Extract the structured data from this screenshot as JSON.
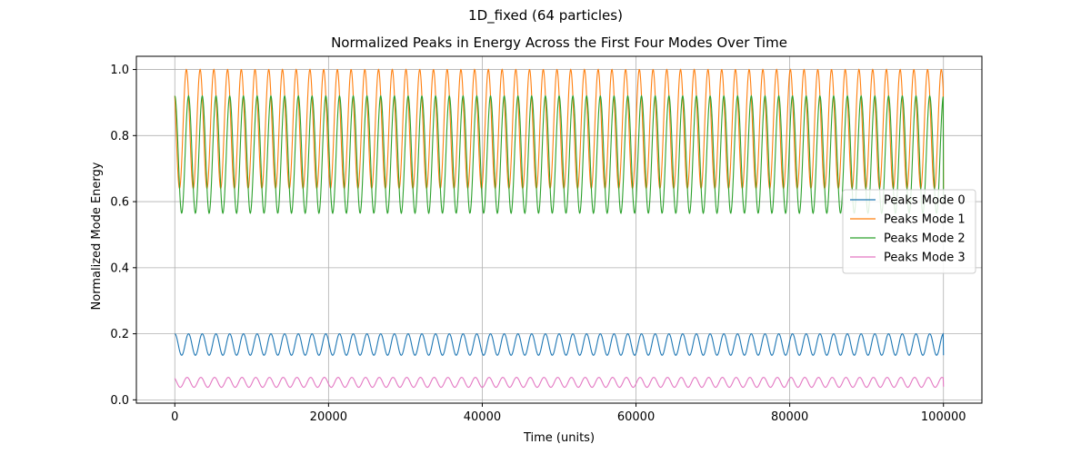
{
  "figure": {
    "suptitle": "1D_fixed (64 particles)"
  },
  "chart_data": {
    "type": "line",
    "title": "Normalized Peaks in Energy Across the First Four Modes Over Time",
    "xlabel": "Time (units)",
    "ylabel": "Normalized Mode Energy",
    "xlim": [
      -5000,
      105000
    ],
    "ylim": [
      -0.01,
      1.04
    ],
    "xticks": [
      0,
      20000,
      40000,
      60000,
      80000,
      100000
    ],
    "xtick_labels": [
      "0",
      "20000",
      "40000",
      "60000",
      "80000",
      "100000"
    ],
    "yticks": [
      0.0,
      0.2,
      0.4,
      0.6,
      0.8,
      1.0
    ],
    "ytick_labels": [
      "0.0",
      "0.2",
      "0.4",
      "0.6",
      "0.8",
      "1.0"
    ],
    "grid": true,
    "legend_position": "center-right",
    "x_range": [
      0,
      100000
    ],
    "series": [
      {
        "name": "Peaks Mode 0",
        "color": "#1f77b4",
        "oscillation": {
          "min": 0.135,
          "max": 0.2,
          "cycles": 56,
          "start": 0.2,
          "end": 0.135
        }
      },
      {
        "name": "Peaks Mode 1",
        "color": "#ff7f0e",
        "oscillation": {
          "min": 0.64,
          "max": 1.0,
          "cycles": 56,
          "start": 0.92,
          "end": 0.64
        }
      },
      {
        "name": "Peaks Mode 2",
        "color": "#2ca02c",
        "oscillation": {
          "min": 0.565,
          "max": 0.92,
          "cycles": 56,
          "start": 0.92,
          "end": 0.6
        }
      },
      {
        "name": "Peaks Mode 3",
        "color": "#e377c2",
        "oscillation": {
          "min": 0.038,
          "max": 0.068,
          "cycles": 56,
          "start": 0.065,
          "end": 0.04
        }
      }
    ]
  }
}
